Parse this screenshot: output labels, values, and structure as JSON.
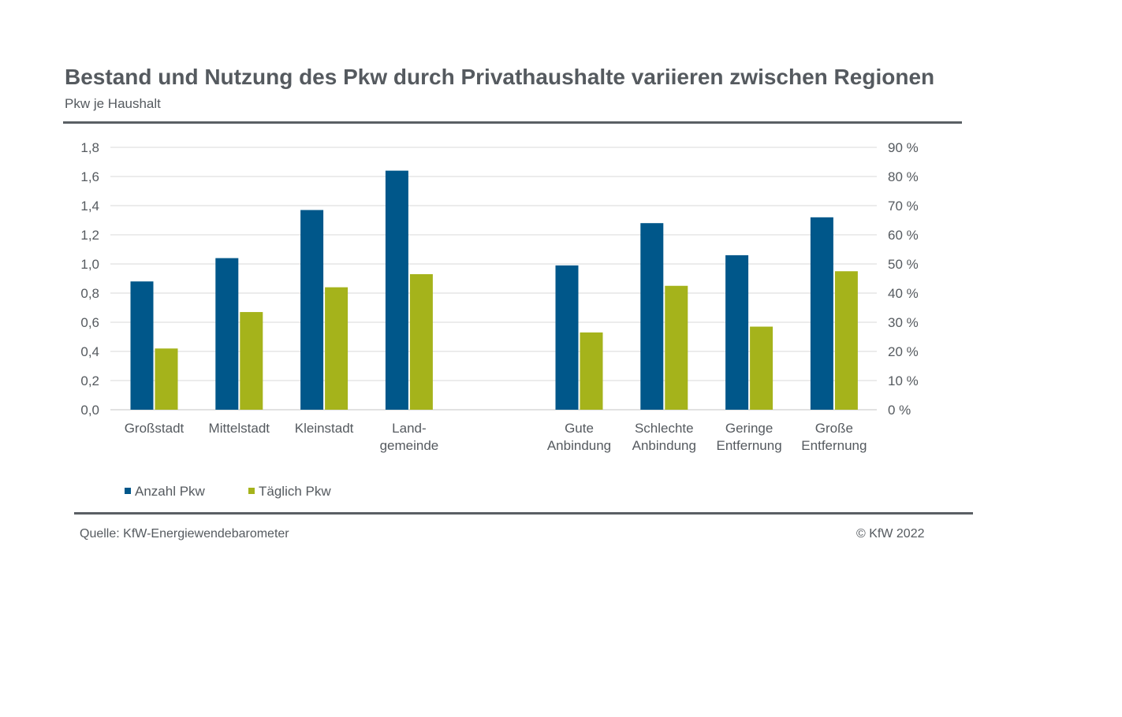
{
  "header": {
    "title": "Bestand und Nutzung des Pkw durch Privathaushalte variieren zwischen Regionen",
    "subtitle": "Pkw je Haushalt"
  },
  "footer": {
    "source": "Quelle: KfW-Energiewendebarometer",
    "copyright": "© KfW 2022"
  },
  "colors": {
    "series1": "#00578a",
    "series2": "#a5b31b",
    "grid": "#d9d9d9",
    "text": "#555a5f"
  },
  "chart_data": {
    "type": "bar",
    "title": "Bestand und Nutzung des Pkw durch Privathaushalte variieren zwischen Regionen",
    "subtitle": "Pkw je Haushalt",
    "categories": [
      [
        "Großstadt"
      ],
      [
        "Mittelstadt"
      ],
      [
        "Kleinstadt"
      ],
      [
        "Land-",
        "gemeinde"
      ],
      [
        "Gute",
        "Anbindung"
      ],
      [
        "Schlechte",
        "Anbindung"
      ],
      [
        "Geringe",
        "Entfernung"
      ],
      [
        "Große",
        "Entfernung"
      ]
    ],
    "category_gap_after_index": 3,
    "series": [
      {
        "name": "Anzahl Pkw",
        "axis": "left",
        "values": [
          0.88,
          1.04,
          1.37,
          1.64,
          0.99,
          1.28,
          1.06,
          1.32
        ]
      },
      {
        "name": "Täglich Pkw",
        "axis": "right",
        "values": [
          21,
          33.5,
          42,
          46.5,
          26.5,
          42.5,
          28.5,
          47.5
        ]
      }
    ],
    "y_left": {
      "ylim": [
        0,
        1.8
      ],
      "ticks": [
        "0,0",
        "0,2",
        "0,4",
        "0,6",
        "0,8",
        "1,0",
        "1,2",
        "1,4",
        "1,6",
        "1,8"
      ]
    },
    "y_right": {
      "ylim": [
        0,
        90
      ],
      "ticks": [
        "0 %",
        "10 %",
        "20 %",
        "30 %",
        "40 %",
        "50 %",
        "60 %",
        "70 %",
        "80 %",
        "90 %"
      ]
    },
    "grid": true,
    "legend_position": "bottom-left"
  }
}
